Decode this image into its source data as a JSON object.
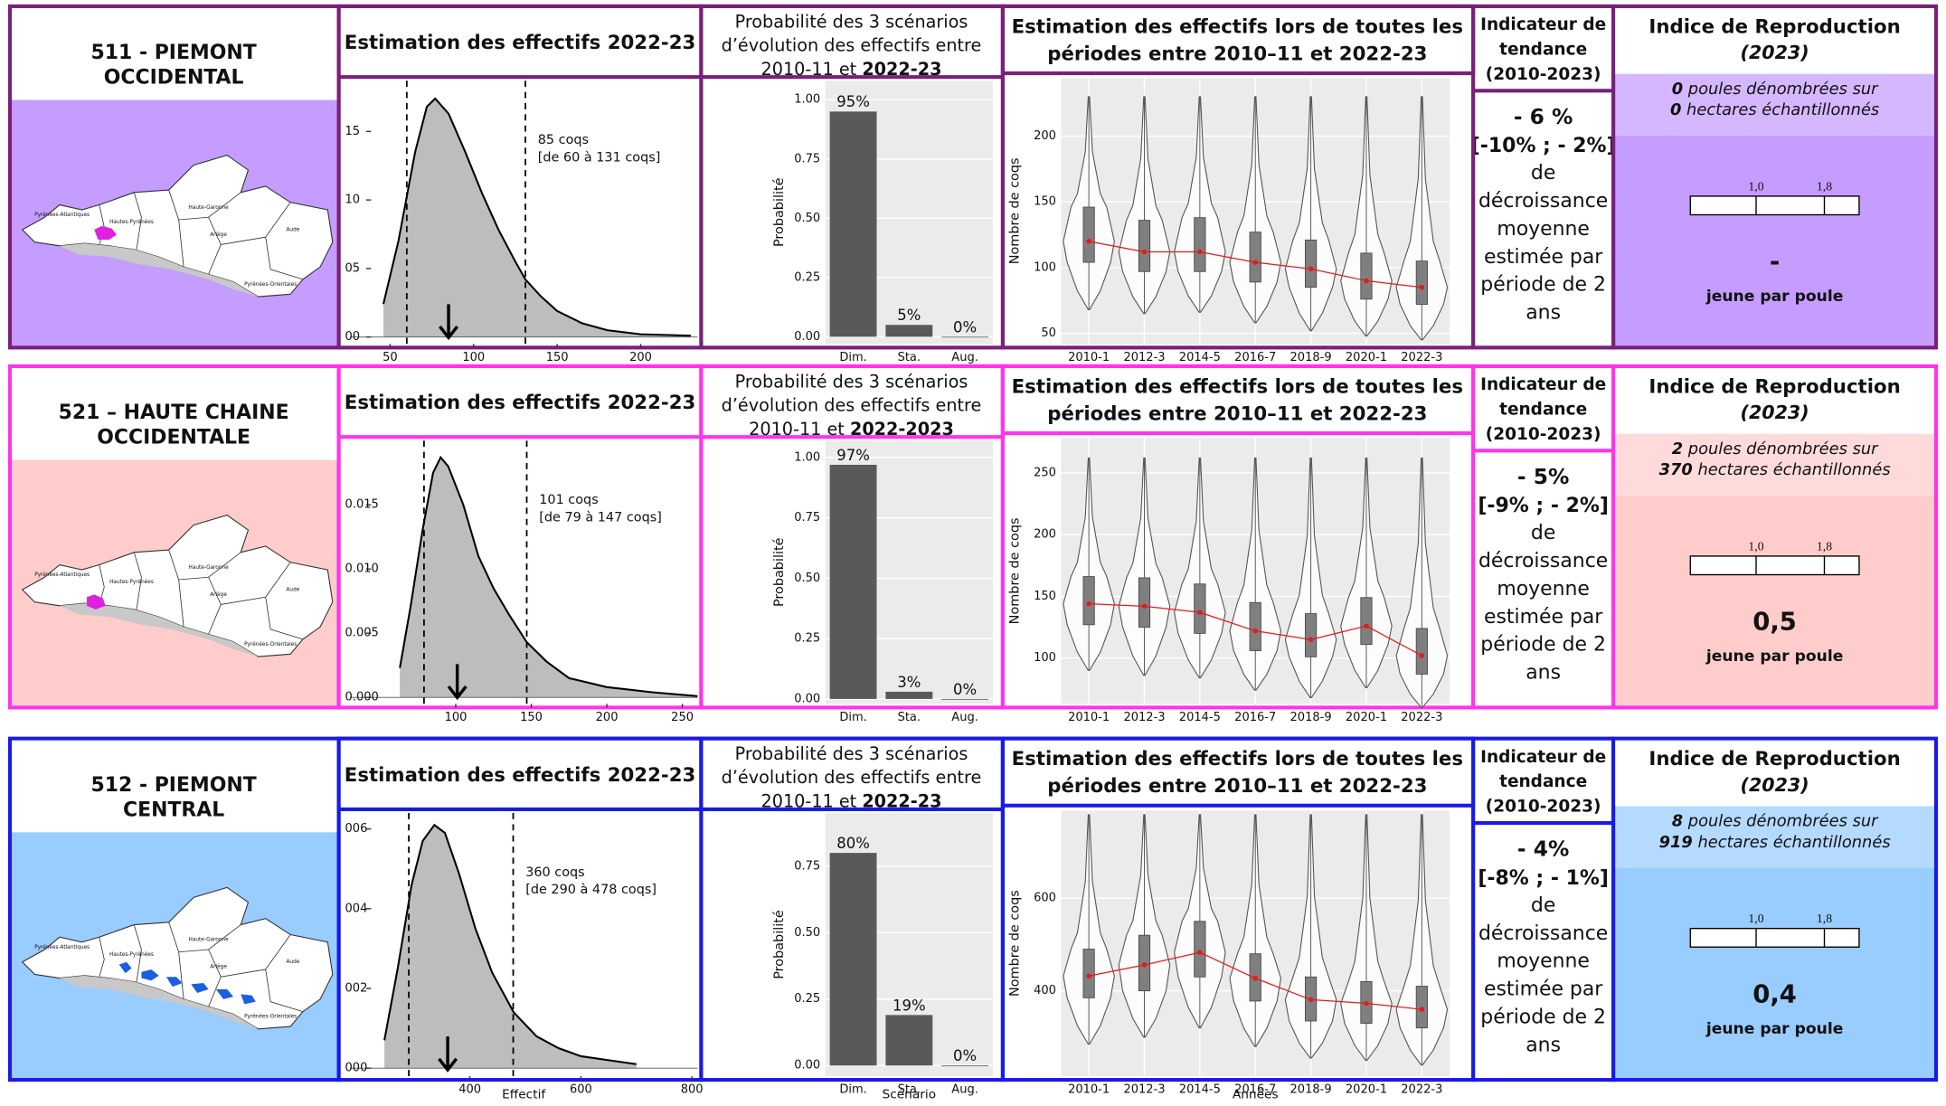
{
  "map_labels": [
    "Pyrénées-Atlantiques",
    "Hautes-Pyrénées",
    "Haute-Garonne",
    "Ariège",
    "Aude",
    "Pyrénées-Orientales"
  ],
  "rows": [
    {
      "region": [
        "511 - PIEMONT",
        "OCCIDENTAL"
      ],
      "region_color": "#a01ea0",
      "background": "#c59cff",
      "border_color": "#7a1f7a",
      "zone_color": "#e020e0",
      "trend_title": [
        "Indicateur de",
        "tendance",
        "(2010-2023)"
      ],
      "trend_value": "- 6 %",
      "trend_interval": "[-10% ; - 2%]",
      "trend_text": [
        "de",
        "décroissance",
        "moyenne",
        "estimée par",
        "période de 2",
        "ans"
      ],
      "repro_title": "Indice de Reproduction",
      "repro_year": "(2023)",
      "hens": "0",
      "hens_text": " poules dénombrées sur",
      "hectares": "0",
      "hectares_text": " hectares échantillonnés",
      "scale": [
        "1,0",
        "1,8"
      ],
      "repro_value": "-",
      "repro_unit": "jeune par poule"
    },
    {
      "region": [
        "521 – HAUTE CHAINE",
        "OCCIDENTALE"
      ],
      "region_color": "#ff3399",
      "background": "#ffcccc",
      "border_color": "#ff33ee",
      "zone_color": "#e020e0",
      "trend_title": [
        "Indicateur de",
        "tendance",
        "(2010-2023)"
      ],
      "trend_value": "- 5%",
      "trend_interval": "[-9% ; - 2%]",
      "trend_text": [
        "de",
        "décroissance",
        "moyenne",
        "estimée par",
        "période de 2",
        "ans"
      ],
      "repro_title": "Indice de Reproduction",
      "repro_year": "(2023)",
      "hens": "2",
      "hens_text": " poules dénombrées sur",
      "hectares": "370",
      "hectares_text": " hectares échantillonnés",
      "scale": [
        "1,0",
        "1,8"
      ],
      "repro_value": "0,5",
      "repro_unit": "jeune par poule"
    },
    {
      "region": [
        "512 - PIEMONT",
        "CENTRAL"
      ],
      "region_color": "#1f3b6e",
      "background": "#99ccff",
      "border_color": "#1a1ae6",
      "zone_color": "#1a5fe0",
      "trend_title": [
        "Indicateur de",
        "tendance",
        "(2010-2023)"
      ],
      "trend_value": "- 4%",
      "trend_interval": "[-8% ; - 1%]",
      "trend_text": [
        "de",
        "décroissance",
        "moyenne",
        "estimée par",
        "période de 2",
        "ans"
      ],
      "repro_title": "Indice de Reproduction",
      "repro_year": "(2023)",
      "hens": "8",
      "hens_text": " poules dénombrées sur",
      "hectares": "919",
      "hectares_text": " hectares échantillonnés",
      "scale": [
        "1,0",
        "1,8"
      ],
      "repro_value": "0,4",
      "repro_unit": "jeune par poule"
    }
  ],
  "chart_data": [
    {
      "type": "density",
      "title": "Estimation des effectifs 2022-23",
      "x": [
        46,
        55,
        65,
        72,
        77,
        85,
        95,
        105,
        115,
        125,
        131,
        140,
        150,
        165,
        180,
        200,
        230
      ],
      "values": [
        0.0024,
        0.007,
        0.0135,
        0.0168,
        0.0174,
        0.0163,
        0.0135,
        0.0105,
        0.0078,
        0.0055,
        0.0042,
        0.003,
        0.0019,
        0.001,
        0.0005,
        0.0002,
        0.0001
      ],
      "xlim": [
        26,
        234
      ],
      "ylim": [
        -0.0005,
        0.0187
      ],
      "xticks": [
        50,
        100,
        150,
        200
      ],
      "yticks": [
        {
          "value": 0,
          "label": "00"
        },
        {
          "value": 0.005,
          "label": "05"
        },
        {
          "value": 0.01,
          "label": "10"
        },
        {
          "value": 0.015,
          "label": "15"
        }
      ],
      "intervals": [
        60,
        131
      ],
      "estimate": 85,
      "annotation": [
        "85 coqs",
        "[de 60 à 131 coqs]"
      ],
      "color": "#bdbdbd"
    },
    {
      "type": "bar",
      "title": [
        "Probabilité des 3 scénarios",
        "d’évolution des effectifs entre",
        "2010-11 et ",
        "2022-23"
      ],
      "categories": [
        "Dim.",
        "Sta.",
        "Aug."
      ],
      "values": [
        0.95,
        0.05,
        0
      ],
      "value_labels": [
        "95%",
        "5%",
        "0%"
      ],
      "ylim": [
        -0.03,
        1.08
      ],
      "yticks": [
        {
          "value": 0,
          "label": "0.00"
        },
        {
          "value": 0.25,
          "label": "0.25"
        },
        {
          "value": 0.5,
          "label": "0.50"
        },
        {
          "value": 0.75,
          "label": "0.75"
        },
        {
          "value": 1,
          "label": "1.00"
        }
      ],
      "ylabel": "Probabilité",
      "color": "#595959"
    },
    {
      "type": "violin",
      "title": [
        "Estimation des effectifs lors de toutes les",
        "périodes entre 2010–11 et 2022-23"
      ],
      "categories": [
        "2010-1",
        "2012-3",
        "2014-5",
        "2016-7",
        "2018-9",
        "2020-1",
        "2022-3"
      ],
      "min": [
        68,
        65,
        66,
        58,
        52,
        48,
        45
      ],
      "q1": [
        104,
        97,
        97,
        89,
        85,
        76,
        72
      ],
      "mean": [
        120,
        112,
        112,
        104,
        99,
        90,
        85
      ],
      "q3": [
        146,
        136,
        138,
        127,
        121,
        111,
        105
      ],
      "max": [
        230,
        230,
        230,
        230,
        230,
        230,
        230
      ],
      "ylim": [
        42,
        244
      ],
      "yticks": [
        50,
        100,
        150,
        200
      ],
      "ylabel": "Nombre de coqs",
      "mean_color": "#e41a1c",
      "box_color": "#7f7f7f"
    },
    {
      "type": "density",
      "title": "Estimation des effectifs 2022-23",
      "x": [
        63,
        70,
        78,
        85,
        90,
        95,
        105,
        115,
        125,
        135,
        147,
        160,
        175,
        200,
        230,
        260
      ],
      "values": [
        0.0023,
        0.007,
        0.013,
        0.0175,
        0.0187,
        0.018,
        0.015,
        0.011,
        0.0085,
        0.0065,
        0.0043,
        0.0028,
        0.0015,
        0.0008,
        0.0004,
        0.0001
      ],
      "xlim": [
        30,
        260
      ],
      "ylim": [
        -0.0005,
        0.02
      ],
      "xticks": [
        100,
        150,
        200,
        250
      ],
      "yticks": [
        {
          "value": 0,
          "label": "0.000"
        },
        {
          "value": 0.005,
          "label": "0.005"
        },
        {
          "value": 0.01,
          "label": "0.010"
        },
        {
          "value": 0.015,
          "label": "0.015"
        }
      ],
      "intervals": [
        79,
        147
      ],
      "estimate": 101,
      "annotation": [
        "101 coqs",
        "[de 79 à 147 coqs]"
      ],
      "color": "#bdbdbd"
    },
    {
      "type": "bar",
      "title": [
        "Probabilité des 3 scénarios",
        "d’évolution des effectifs entre",
        "2010-11 et ",
        "2022-2023"
      ],
      "categories": [
        "Dim.",
        "Sta.",
        "Aug."
      ],
      "values": [
        0.97,
        0.03,
        0
      ],
      "value_labels": [
        "97%",
        "3%",
        "0%"
      ],
      "ylim": [
        -0.02,
        1.07
      ],
      "yticks": [
        {
          "value": 0,
          "label": "0.00"
        },
        {
          "value": 0.25,
          "label": "0.25"
        },
        {
          "value": 0.5,
          "label": "0.50"
        },
        {
          "value": 0.75,
          "label": "0.75"
        },
        {
          "value": 1,
          "label": "1.00"
        }
      ],
      "ylabel": "Probabilité",
      "color": "#595959"
    },
    {
      "type": "violin",
      "title": [
        "Estimation des effectifs lors de toutes les",
        "périodes entre 2010–11 et 2022-23"
      ],
      "categories": [
        "2010-1",
        "2012-3",
        "2014-5",
        "2016-7",
        "2018-9",
        "2020-1",
        "2022-3"
      ],
      "min": [
        90,
        86,
        84,
        74,
        68,
        76,
        60
      ],
      "q1": [
        127,
        125,
        120,
        106,
        101,
        111,
        87
      ],
      "mean": [
        144,
        142,
        137,
        122,
        115,
        126,
        102
      ],
      "q3": [
        166,
        165,
        160,
        145,
        136,
        149,
        124
      ],
      "max": [
        262,
        262,
        262,
        262,
        262,
        262,
        262
      ],
      "ylim": [
        63,
        278
      ],
      "yticks": [
        100,
        150,
        200,
        250
      ],
      "ylabel": "Nombre de coqs",
      "mean_color": "#e41a1c",
      "box_color": "#7f7f7f"
    },
    {
      "type": "density",
      "title": "Estimation des effectifs 2022-23",
      "x": [
        246,
        270,
        295,
        315,
        336,
        355,
        380,
        410,
        440,
        479,
        520,
        560,
        600,
        650,
        700
      ],
      "values": [
        0.0007,
        0.0025,
        0.0046,
        0.0057,
        0.0061,
        0.0059,
        0.0049,
        0.0035,
        0.0024,
        0.0014,
        0.0008,
        0.0005,
        0.0003,
        0.0002,
        0.0001
      ],
      "xlim": [
        184,
        810
      ],
      "ylim": [
        -0.0002,
        0.0064
      ],
      "xticks": [
        400,
        600,
        800
      ],
      "yticks": [
        {
          "value": 0,
          "label": "000"
        },
        {
          "value": 0.002,
          "label": "002"
        },
        {
          "value": 0.004,
          "label": "004"
        },
        {
          "value": 0.006,
          "label": "006"
        }
      ],
      "intervals": [
        290,
        478
      ],
      "estimate": 360,
      "annotation": [
        "360 coqs",
        "[de 290 à 478 coqs]"
      ],
      "color": "#bdbdbd",
      "xlabel": "Effectif"
    },
    {
      "type": "bar",
      "title": [
        "Probabilité des 3 scénarios",
        "d’évolution des effectifs entre",
        "2010-11 et ",
        "2022-23"
      ],
      "categories": [
        "Dim.",
        "Sta.",
        "Aug."
      ],
      "values": [
        0.8,
        0.19,
        0
      ],
      "value_labels": [
        "80%",
        "19%",
        "0%"
      ],
      "ylim": [
        -0.04,
        0.95
      ],
      "yticks": [
        {
          "value": 0,
          "label": "0.00"
        },
        {
          "value": 0.25,
          "label": "0.25"
        },
        {
          "value": 0.5,
          "label": "0.50"
        },
        {
          "value": 0.75,
          "label": "0.75"
        }
      ],
      "ylabel": "Probabilité",
      "color": "#595959",
      "xlabel": "Scénario"
    },
    {
      "type": "violin",
      "title": [
        "Estimation des effectifs lors de toutes les",
        "périodes entre 2010–11 et 2022-23"
      ],
      "categories": [
        "2010-1",
        "2012-3",
        "2014-5",
        "2016-7",
        "2018-9",
        "2020-1",
        "2022-3"
      ],
      "min": [
        285,
        300,
        320,
        280,
        255,
        250,
        240
      ],
      "q1": [
        385,
        400,
        430,
        378,
        335,
        330,
        320
      ],
      "mean": [
        432,
        456,
        483,
        427,
        381,
        373,
        360
      ],
      "q3": [
        490,
        520,
        550,
        480,
        430,
        420,
        410
      ],
      "max": [
        780,
        780,
        780,
        780,
        780,
        780,
        780
      ],
      "ylim": [
        216,
        789
      ],
      "yticks": [
        400,
        600
      ],
      "ylabel": "Nombre de coqs",
      "mean_color": "#e41a1c",
      "box_color": "#7f7f7f",
      "xlabel": "Années"
    }
  ]
}
